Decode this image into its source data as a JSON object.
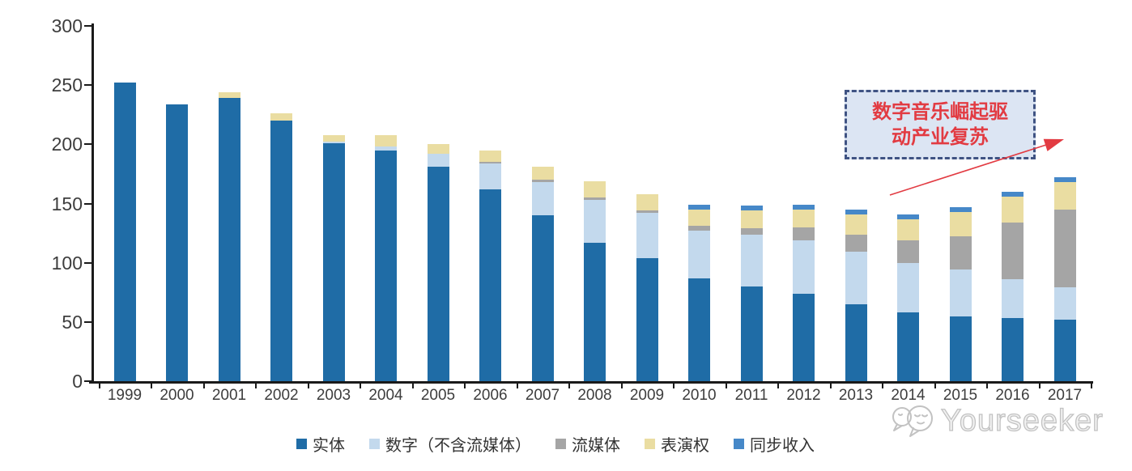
{
  "chart_data": {
    "type": "bar",
    "stacked": true,
    "title": "",
    "xlabel": "",
    "ylabel": "",
    "ylim": [
      0,
      300
    ],
    "yticks": [
      0,
      50,
      100,
      150,
      200,
      250,
      300
    ],
    "grid": false,
    "legend_position": "bottom",
    "categories": [
      "1999",
      "2000",
      "2001",
      "2002",
      "2003",
      "2004",
      "2005",
      "2006",
      "2007",
      "2008",
      "2009",
      "2010",
      "2011",
      "2012",
      "2013",
      "2014",
      "2015",
      "2016",
      "2017"
    ],
    "series": [
      {
        "name": "实体",
        "color": "#1F6CA6",
        "values": [
          252,
          234,
          239,
          220,
          201,
          195,
          181,
          162,
          140,
          117,
          104,
          87,
          80,
          74,
          65,
          58,
          55,
          53,
          52
        ]
      },
      {
        "name": "数字（不含流媒体）",
        "color": "#C3D9ED",
        "values": [
          0,
          0,
          0,
          0,
          1,
          3,
          11,
          22,
          28,
          36,
          38,
          40,
          44,
          45,
          44,
          42,
          39,
          33,
          27
        ]
      },
      {
        "name": "流媒体",
        "color": "#A5A5A5",
        "values": [
          0,
          0,
          0,
          0,
          0,
          0,
          0,
          1,
          2,
          2,
          2,
          4,
          5,
          11,
          15,
          19,
          28,
          48,
          66
        ]
      },
      {
        "name": "表演权",
        "color": "#EADDA2",
        "values": [
          0,
          0,
          5,
          6,
          6,
          10,
          8,
          10,
          11,
          14,
          14,
          14,
          15,
          15,
          17,
          18,
          21,
          22,
          23
        ]
      },
      {
        "name": "同步收入",
        "color": "#4688C8",
        "values": [
          0,
          0,
          0,
          0,
          0,
          0,
          0,
          0,
          0,
          0,
          0,
          4,
          4,
          4,
          4,
          4,
          4,
          4,
          4
        ]
      }
    ]
  },
  "annotation": {
    "line1": "数字音乐崛起驱",
    "line2": "动产业复苏",
    "text_color": "#E23B42",
    "arrow_color": "#E23B42",
    "border_color": "#3F5383",
    "fill_color": "#DCE5F3"
  },
  "watermark": {
    "text": "Yourseeker"
  }
}
